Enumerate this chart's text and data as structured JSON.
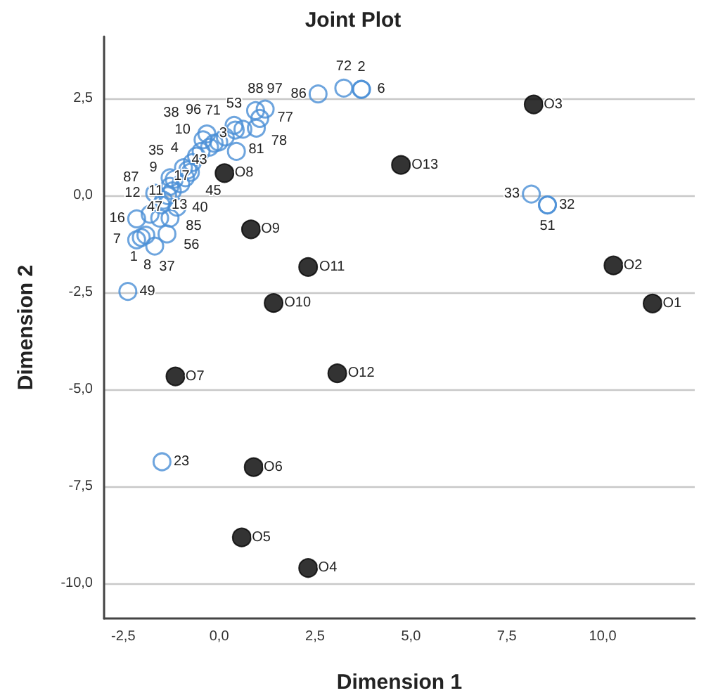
{
  "chart_data": {
    "type": "scatter",
    "title": "Joint Plot",
    "xlabel": "Dimension 1",
    "ylabel": "Dimension 2",
    "xlim": [
      -3,
      12.4
    ],
    "ylim": [
      -10.9,
      4.1
    ],
    "xticks": [
      {
        "value": -2.5,
        "label": "-2,5"
      },
      {
        "value": 0,
        "label": "0,0"
      },
      {
        "value": 2.5,
        "label": "2,5"
      },
      {
        "value": 5,
        "label": "5,0"
      },
      {
        "value": 7.5,
        "label": "7,5"
      },
      {
        "value": 10,
        "label": "10,0"
      }
    ],
    "yticks": [
      {
        "value": 2.5,
        "label": "2,5"
      },
      {
        "value": 0,
        "label": "0,0"
      },
      {
        "value": -2.5,
        "label": "-2,5"
      },
      {
        "value": -5,
        "label": "-5,0"
      },
      {
        "value": -7.5,
        "label": "-7,5"
      },
      {
        "value": -10,
        "label": "-10,0"
      }
    ],
    "grid": "y",
    "marker": "circle",
    "series": [
      {
        "color": "#4a8fd6",
        "x": [
          -2.38,
          -2.15,
          -2.03,
          -1.91,
          -1.68,
          -1.36,
          -2.15,
          -1.8,
          -1.28,
          -1.55,
          -1.68,
          -1.45,
          -1.34,
          -1.22,
          -1.51,
          -1.28,
          -1.17,
          -0.88,
          -1.28,
          -0.93,
          -0.82,
          -0.59,
          -0.47,
          -0.42,
          -0.32,
          -0.13,
          -0.01,
          0.16,
          0.39,
          0.62,
          0.42,
          0.95,
          1.2,
          1.06,
          0.97,
          0.45,
          2.58,
          3.25,
          3.71,
          3.71,
          8.14,
          8.56,
          8.56,
          -1.49,
          -0.7,
          -1.0,
          -0.25,
          -1.1,
          -0.75
        ],
        "values": [
          -2.47,
          -1.14,
          -1.08,
          -1.02,
          -1.3,
          -0.99,
          -0.6,
          -0.48,
          -0.58,
          -0.58,
          0.06,
          -0.12,
          0.0,
          0.12,
          -0.24,
          0.24,
          0.42,
          0.46,
          0.46,
          0.72,
          0.66,
          1.02,
          1.14,
          1.44,
          1.59,
          1.35,
          1.38,
          1.51,
          1.81,
          1.71,
          1.69,
          2.19,
          2.23,
          1.99,
          1.74,
          1.14,
          2.62,
          2.77,
          2.74,
          2.74,
          0.04,
          -0.24,
          -0.24,
          -6.86,
          0.85,
          0.3,
          1.25,
          -0.3,
          0.6
        ]
      },
      {
        "color": "#000000",
        "x": [
          11.3,
          10.28,
          8.2,
          2.32,
          0.59,
          0.9,
          -1.14,
          0.14,
          0.83,
          1.42,
          2.32,
          3.08,
          4.74
        ],
        "values": [
          -2.78,
          -1.8,
          2.35,
          -9.6,
          -8.81,
          -7.0,
          -4.66,
          0.58,
          -0.87,
          -2.77,
          -1.84,
          -4.58,
          0.79
        ]
      }
    ],
    "annotations": [
      {
        "text": "O1",
        "x": 11.3,
        "y": -2.78
      },
      {
        "text": "O2",
        "x": 10.28,
        "y": -1.8
      },
      {
        "text": "O3",
        "x": 8.2,
        "y": 2.35
      },
      {
        "text": "O4",
        "x": 2.32,
        "y": -9.6
      },
      {
        "text": "O5",
        "x": 0.59,
        "y": -8.81
      },
      {
        "text": "O6",
        "x": 0.9,
        "y": -7.0
      },
      {
        "text": "O7",
        "x": -1.14,
        "y": -4.66
      },
      {
        "text": "O8",
        "x": 0.14,
        "y": 0.58
      },
      {
        "text": "O9",
        "x": 0.83,
        "y": -0.87
      },
      {
        "text": "O10",
        "x": 1.42,
        "y": -2.77
      },
      {
        "text": "O11",
        "x": 2.32,
        "y": -1.84
      },
      {
        "text": "O12",
        "x": 3.08,
        "y": -4.58
      },
      {
        "text": "O13",
        "x": 4.74,
        "y": 0.79
      },
      {
        "text": "86",
        "x": 2.58,
        "y": 2.62
      },
      {
        "text": "72",
        "x": 3.25,
        "y": 2.77
      },
      {
        "text": "6",
        "x": 3.71,
        "y": 2.74
      },
      {
        "text": "2",
        "x": 3.71,
        "y": 2.74
      },
      {
        "text": "33",
        "x": 8.14,
        "y": 0.04
      },
      {
        "text": "32",
        "x": 8.56,
        "y": -0.24
      },
      {
        "text": "51",
        "x": 8.56,
        "y": -0.24
      },
      {
        "text": "23",
        "x": -1.49,
        "y": -6.86
      },
      {
        "text": "49",
        "x": -2.38,
        "y": -2.47
      },
      {
        "text": "88",
        "x": 0.95,
        "y": 2.19
      },
      {
        "text": "97",
        "x": 1.2,
        "y": 2.23
      },
      {
        "text": "77",
        "x": 1.06,
        "y": 1.99
      },
      {
        "text": "81",
        "x": 0.97,
        "y": 1.74
      },
      {
        "text": "53",
        "x": 0.39,
        "y": 1.81
      },
      {
        "text": "71",
        "x": 0.42,
        "y": 1.69
      },
      {
        "text": "78",
        "x": 0.62,
        "y": 1.71
      },
      {
        "text": "96",
        "x": 0.16,
        "y": 1.51
      },
      {
        "text": "10",
        "x": -0.01,
        "y": 1.38
      },
      {
        "text": "3",
        "x": -0.13,
        "y": 1.35
      },
      {
        "text": "4",
        "x": -0.32,
        "y": 1.59
      },
      {
        "text": "38",
        "x": -0.42,
        "y": 1.44
      },
      {
        "text": "35",
        "x": -0.47,
        "y": 1.14
      },
      {
        "text": "45",
        "x": -0.59,
        "y": 1.02
      },
      {
        "text": "9",
        "x": -0.93,
        "y": 0.72
      },
      {
        "text": "43",
        "x": -0.82,
        "y": 0.66
      },
      {
        "text": "40",
        "x": -0.88,
        "y": 0.46
      },
      {
        "text": "87",
        "x": -1.28,
        "y": 0.46
      },
      {
        "text": "12",
        "x": -1.17,
        "y": 0.42
      },
      {
        "text": "17",
        "x": -1.28,
        "y": 0.24
      },
      {
        "text": "11",
        "x": -1.22,
        "y": 0.12
      },
      {
        "text": "13",
        "x": -1.34,
        "y": 0.0
      },
      {
        "text": "47",
        "x": -1.68,
        "y": 0.06
      },
      {
        "text": "16",
        "x": -2.15,
        "y": -0.6
      },
      {
        "text": "85",
        "x": -1.28,
        "y": -0.58
      },
      {
        "text": "56",
        "x": -1.55,
        "y": -0.58
      },
      {
        "text": "37",
        "x": -1.36,
        "y": -0.99
      },
      {
        "text": "8",
        "x": -1.68,
        "y": -1.3
      },
      {
        "text": "1",
        "x": -2.03,
        "y": -1.08
      },
      {
        "text": "7",
        "x": -2.15,
        "y": -1.14
      }
    ]
  }
}
